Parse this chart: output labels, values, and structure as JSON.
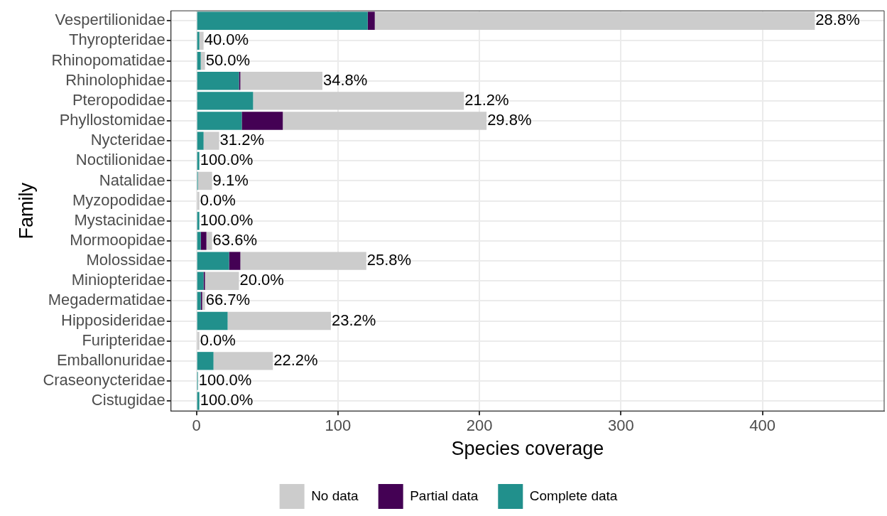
{
  "chart_data": {
    "type": "bar",
    "orientation": "horizontal",
    "stacked": true,
    "categories": [
      "Vespertilionidae",
      "Thyropteridae",
      "Rhinopomatidae",
      "Rhinolophidae",
      "Pteropodidae",
      "Phyllostomidae",
      "Nycteridae",
      "Noctilionidae",
      "Natalidae",
      "Myzopodidae",
      "Mystacinidae",
      "Mormoopidae",
      "Molossidae",
      "Miniopteridae",
      "Megadermatidae",
      "Hipposideridae",
      "Furipteridae",
      "Emballonuridae",
      "Craseonycteridae",
      "Cistugidae"
    ],
    "series": [
      {
        "name": "Complete data",
        "color": "#21908c",
        "values": [
          121,
          2,
          3,
          30,
          40,
          32,
          5,
          2,
          1,
          0,
          2,
          3,
          23,
          5,
          3,
          22,
          0,
          12,
          1,
          2
        ]
      },
      {
        "name": "Partial data",
        "color": "#440154",
        "values": [
          5,
          0,
          0,
          1,
          0,
          29,
          0,
          0,
          0,
          0,
          0,
          4,
          8,
          1,
          1,
          0,
          0,
          0,
          0,
          0
        ]
      },
      {
        "name": "No data",
        "color": "#cccccc",
        "values": [
          311,
          3,
          3,
          58,
          149,
          144,
          11,
          0,
          10,
          2,
          0,
          4,
          89,
          24,
          2,
          73,
          2,
          42,
          0,
          0
        ]
      }
    ],
    "xlim": [
      -18,
      486
    ],
    "xticks": [
      0,
      100,
      200,
      300,
      400
    ],
    "xlabel": "Species coverage",
    "ylabel": "Family",
    "grid": true,
    "legend": "bottom",
    "annotations": [
      {
        "text": "28.8%",
        "x": 437,
        "y": "Vespertilionidae"
      },
      {
        "text": "40.0%",
        "x": 5,
        "y": "Thyropteridae"
      },
      {
        "text": "50.0%",
        "x": 6,
        "y": "Rhinopomatidae"
      },
      {
        "text": "34.8%",
        "x": 89,
        "y": "Rhinolophidae"
      },
      {
        "text": "21.2%",
        "x": 189,
        "y": "Pteropodidae"
      },
      {
        "text": "29.8%",
        "x": 205,
        "y": "Phyllostomidae"
      },
      {
        "text": "31.2%",
        "x": 16,
        "y": "Nycteridae"
      },
      {
        "text": "100.0%",
        "x": 2,
        "y": "Noctilionidae"
      },
      {
        "text": "9.1%",
        "x": 11,
        "y": "Natalidae"
      },
      {
        "text": "0.0%",
        "x": 2,
        "y": "Myzopodidae"
      },
      {
        "text": "100.0%",
        "x": 2,
        "y": "Mystacinidae"
      },
      {
        "text": "63.6%",
        "x": 11,
        "y": "Mormoopidae"
      },
      {
        "text": "25.8%",
        "x": 120,
        "y": "Molossidae"
      },
      {
        "text": "20.0%",
        "x": 30,
        "y": "Miniopteridae"
      },
      {
        "text": "66.7%",
        "x": 6,
        "y": "Megadermatidae"
      },
      {
        "text": "23.2%",
        "x": 95,
        "y": "Hipposideridae"
      },
      {
        "text": "0.0%",
        "x": 2,
        "y": "Furipteridae"
      },
      {
        "text": "22.2%",
        "x": 54,
        "y": "Emballonuridae"
      },
      {
        "text": "100.0%",
        "x": 1,
        "y": "Craseonycteridae"
      },
      {
        "text": "100.0%",
        "x": 2,
        "y": "Cistugidae"
      }
    ]
  }
}
